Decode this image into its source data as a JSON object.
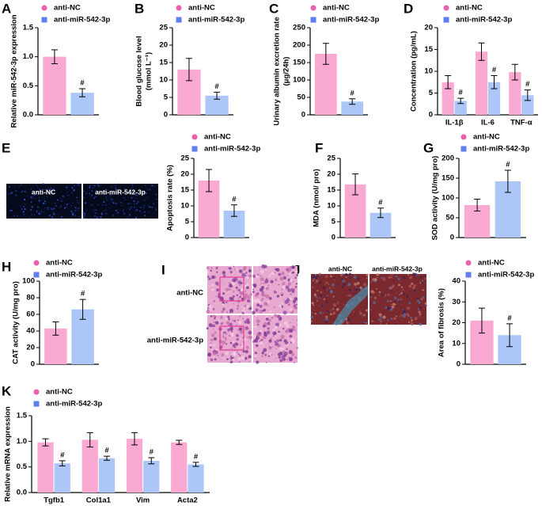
{
  "panel_labels": [
    "A",
    "B",
    "C",
    "D",
    "E",
    "F",
    "G",
    "H",
    "I",
    "J",
    "K"
  ],
  "images": [
    {
      "labels": [
        "anti-NC",
        "anti-miR-542-3p"
      ]
    },
    {
      "labels": [
        "anti-NC",
        "anti-miR-542-3p"
      ]
    },
    {
      "labels": [
        "anti-NC",
        "anti-miR-542-3p"
      ]
    }
  ],
  "chart_data": [
    {
      "type": "bar",
      "ylabel": "Relative miR-542-3p expression",
      "ylim": [
        0,
        1.5
      ],
      "yticks": [
        {
          "value": 0,
          "label": "0.0"
        },
        0.5,
        {
          "value": 1,
          "label": "1.0"
        },
        1.5
      ],
      "annotation": "#",
      "series": [
        {
          "name": "anti-NC",
          "color": "#f9a9d2",
          "marker_color": "#ec5fae",
          "values": [
            1.0
          ],
          "errors": [
            0.12
          ]
        },
        {
          "name": "anti-miR-542-3p",
          "color": "#abc6f7",
          "marker_color": "#5d7ff0",
          "values": [
            0.38
          ],
          "errors": [
            0.07
          ]
        }
      ]
    },
    {
      "type": "bar",
      "ylabel": [
        "Blood glucose level",
        "(mmol L⁻¹)"
      ],
      "ylim": [
        0,
        25
      ],
      "yticks": [
        0,
        5,
        10,
        15,
        20,
        25
      ],
      "annotation": "#",
      "series": [
        {
          "name": "anti-NC",
          "color": "#f9a9d2",
          "marker_color": "#ec5fae",
          "values": [
            13
          ],
          "errors": [
            3.2
          ]
        },
        {
          "name": "anti-miR-542-3p",
          "color": "#abc6f7",
          "marker_color": "#5d7ff0",
          "values": [
            5.5
          ],
          "errors": [
            1
          ]
        }
      ]
    },
    {
      "type": "bar",
      "ylabel": [
        "Urinary albumin excretion rate",
        "(μg/24h)"
      ],
      "ylim": [
        0,
        250
      ],
      "yticks": [
        0,
        50,
        100,
        150,
        200,
        250
      ],
      "annotation": "#",
      "series": [
        {
          "name": "anti-NC",
          "color": "#f9a9d2",
          "marker_color": "#ec5fae",
          "values": [
            175
          ],
          "errors": [
            30
          ]
        },
        {
          "name": "anti-miR-542-3p",
          "color": "#abc6f7",
          "marker_color": "#5d7ff0",
          "values": [
            38
          ],
          "errors": [
            8
          ]
        }
      ]
    },
    {
      "type": "bar",
      "ylabel": "Concentration (pg/mL)",
      "categories": [
        "IL-1β",
        "IL-6",
        "TNF-α"
      ],
      "ylim": [
        0,
        20
      ],
      "yticks": [
        0,
        5,
        10,
        15,
        20
      ],
      "annotation": "#",
      "series": [
        {
          "name": "anti-NC",
          "color": "#f9a9d2",
          "marker_color": "#ec5fae",
          "values": [
            7.5,
            14.5,
            9.8
          ],
          "errors": [
            1.5,
            2,
            1.8
          ]
        },
        {
          "name": "anti-miR-542-3p",
          "color": "#abc6f7",
          "marker_color": "#5d7ff0",
          "values": [
            3.2,
            7.5,
            4.5
          ],
          "errors": [
            0.6,
            1.5,
            1.2
          ]
        }
      ]
    },
    {
      "type": "bar",
      "ylabel": "Apoptosis rate (%)",
      "ylim": [
        0,
        25
      ],
      "yticks": [
        0,
        5,
        10,
        15,
        20,
        25
      ],
      "annotation": "#",
      "series": [
        {
          "name": "anti-NC",
          "color": "#f9a9d2",
          "marker_color": "#ec5fae",
          "values": [
            18
          ],
          "errors": [
            3.5
          ]
        },
        {
          "name": "anti-miR-542-3p",
          "color": "#abc6f7",
          "marker_color": "#5d7ff0",
          "values": [
            8.5
          ],
          "errors": [
            1.8
          ]
        }
      ]
    },
    {
      "type": "bar",
      "ylabel": "MDA (nmol/ pro)",
      "ylim": [
        0,
        25
      ],
      "yticks": [
        0,
        5,
        10,
        15,
        20,
        25
      ],
      "annotation": "#",
      "series": [
        {
          "color": "#f9a9d2",
          "values": [
            16.8
          ],
          "errors": [
            3.3
          ]
        },
        {
          "color": "#abc6f7",
          "values": [
            7.8
          ],
          "errors": [
            1.5
          ]
        }
      ]
    },
    {
      "type": "bar",
      "ylabel": "SOD activity (U/mg pro)",
      "ylim": [
        0,
        200
      ],
      "yticks": [
        0,
        50,
        100,
        150,
        200
      ],
      "annotation": "#",
      "series": [
        {
          "name": "anti-NC",
          "color": "#f9a9d2",
          "marker_color": "#ec5fae",
          "values": [
            82
          ],
          "errors": [
            15
          ]
        },
        {
          "name": "anti-miR-542-3p",
          "color": "#abc6f7",
          "marker_color": "#5d7ff0",
          "values": [
            142
          ],
          "errors": [
            28
          ]
        }
      ]
    },
    {
      "type": "bar",
      "ylabel": "CAT activity (U/mg pro)",
      "ylim": [
        0,
        100
      ],
      "yticks": [
        0,
        20,
        40,
        60,
        80,
        100
      ],
      "annotation": "#",
      "series": [
        {
          "name": "anti-NC",
          "color": "#f9a9d2",
          "marker_color": "#ec5fae",
          "values": [
            43
          ],
          "errors": [
            8
          ]
        },
        {
          "name": "anti-miR-542-3p",
          "color": "#abc6f7",
          "marker_color": "#5d7ff0",
          "values": [
            66
          ],
          "errors": [
            12
          ]
        }
      ]
    },
    {
      "type": "bar",
      "ylabel": "Area of fibrosis (%)",
      "ylim": [
        0,
        40
      ],
      "yticks": [
        0,
        10,
        20,
        30,
        40
      ],
      "annotation": "#",
      "series": [
        {
          "name": "anti-NC",
          "color": "#f9a9d2",
          "marker_color": "#ec5fae",
          "values": [
            21
          ],
          "errors": [
            6
          ]
        },
        {
          "name": "anti-miR-542-3p",
          "color": "#abc6f7",
          "marker_color": "#5d7ff0",
          "values": [
            14
          ],
          "errors": [
            5.5
          ]
        }
      ]
    },
    {
      "type": "bar",
      "ylabel": "Relative mRNA expression",
      "categories": [
        "Tgfb1",
        "Col1a1",
        "Vim",
        "Acta2"
      ],
      "ylim": [
        0,
        1.5
      ],
      "yticks": [
        {
          "value": 0,
          "label": "0.0"
        },
        0.5,
        {
          "value": 1,
          "label": "1.0"
        },
        1.5
      ],
      "annotation": "#",
      "series": [
        {
          "name": "anti-NC",
          "color": "#f9a9d2",
          "marker_color": "#ec5fae",
          "values": [
            0.98,
            1.03,
            1.05,
            0.98
          ],
          "errors": [
            0.07,
            0.14,
            0.12,
            0.04
          ]
        },
        {
          "name": "anti-miR-542-3p",
          "color": "#abc6f7",
          "marker_color": "#5d7ff0",
          "values": [
            0.57,
            0.67,
            0.62,
            0.55
          ],
          "errors": [
            0.05,
            0.04,
            0.06,
            0.04
          ]
        }
      ]
    }
  ]
}
